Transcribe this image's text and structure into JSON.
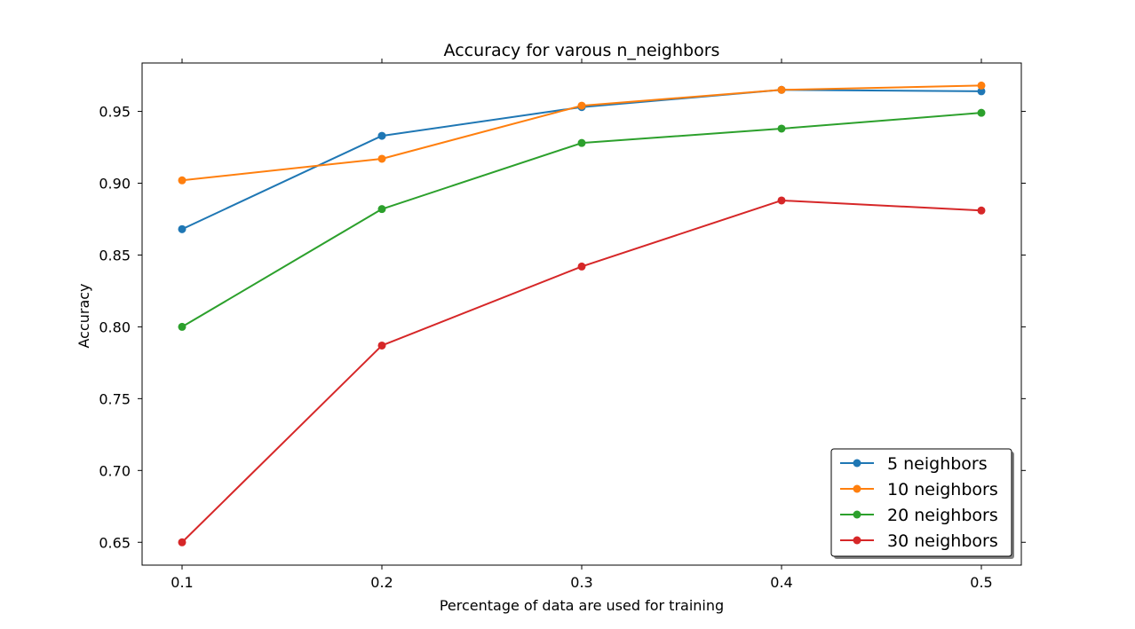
{
  "chart_data": {
    "type": "line",
    "title": "Accuracy for varous n_neighbors",
    "xlabel": "Percentage of data are used for training",
    "ylabel": "Accuracy",
    "x": [
      0.1,
      0.2,
      0.3,
      0.4,
      0.5
    ],
    "x_tick_labels": [
      "0.1",
      "0.2",
      "0.3",
      "0.4",
      "0.5"
    ],
    "xlim": [
      0.08,
      0.52
    ],
    "y_ticks": [
      0.65,
      0.7,
      0.75,
      0.8,
      0.85,
      0.9,
      0.95
    ],
    "y_tick_labels": [
      "0.65",
      "0.70",
      "0.75",
      "0.80",
      "0.85",
      "0.90",
      "0.95"
    ],
    "ylim": [
      0.6341,
      0.9837
    ],
    "grid": false,
    "legend_position": "lower-right",
    "series": [
      {
        "name": "5 neighbors",
        "color": "#1f77b4",
        "values": [
          0.868,
          0.933,
          0.953,
          0.965,
          0.964
        ]
      },
      {
        "name": "10 neighbors",
        "color": "#ff7f0e",
        "values": [
          0.902,
          0.917,
          0.954,
          0.965,
          0.968
        ]
      },
      {
        "name": "20 neighbors",
        "color": "#2ca02c",
        "values": [
          0.8,
          0.882,
          0.928,
          0.938,
          0.949
        ]
      },
      {
        "name": "30 neighbors",
        "color": "#d62728",
        "values": [
          0.65,
          0.787,
          0.842,
          0.888,
          0.881
        ]
      }
    ]
  }
}
